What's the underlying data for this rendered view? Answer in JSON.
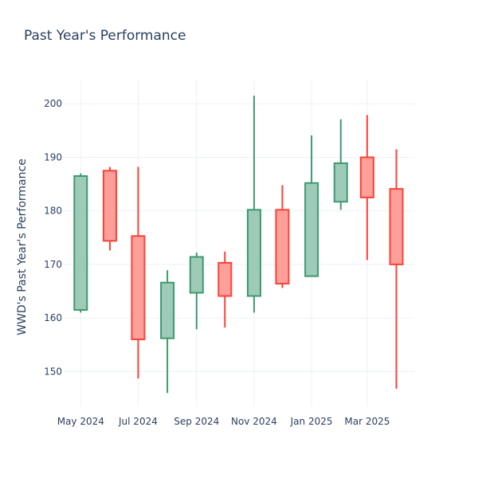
{
  "chart_data": {
    "type": "candlestick",
    "title": "Past Year's Performance",
    "xlabel": "",
    "ylabel": "WWD's Past Year's Performance",
    "ylim": [
      143.5,
      204.5
    ],
    "yticks": [
      150,
      160,
      170,
      180,
      190,
      200
    ],
    "xlim": [
      "2024-04-13",
      "2025-04-20"
    ],
    "xticks": [
      {
        "date": "2024-05-01",
        "label": "May 2024"
      },
      {
        "date": "2024-07-01",
        "label": "Jul 2024"
      },
      {
        "date": "2024-09-01",
        "label": "Sep 2024"
      },
      {
        "date": "2024-11-01",
        "label": "Nov 2024"
      },
      {
        "date": "2025-01-01",
        "label": "Jan 2025"
      },
      {
        "date": "2025-03-01",
        "label": "Mar 2025"
      }
    ],
    "increasing_color": "#3d9970",
    "increasing_fill": "#9ecbb7",
    "decreasing_color": "#ff4136",
    "decreasing_fill": "#ff9f9a",
    "candles": [
      {
        "date": "2024-05-01",
        "open": 161.5,
        "high": 187.0,
        "low": 161.0,
        "close": 186.5
      },
      {
        "date": "2024-06-01",
        "open": 187.5,
        "high": 188.2,
        "low": 172.6,
        "close": 174.4
      },
      {
        "date": "2024-07-01",
        "open": 175.3,
        "high": 188.2,
        "low": 148.7,
        "close": 156.0
      },
      {
        "date": "2024-08-01",
        "open": 156.2,
        "high": 168.9,
        "low": 146.0,
        "close": 166.6
      },
      {
        "date": "2024-09-01",
        "open": 164.7,
        "high": 172.2,
        "low": 157.9,
        "close": 171.4
      },
      {
        "date": "2024-10-01",
        "open": 170.3,
        "high": 172.4,
        "low": 158.2,
        "close": 164.1
      },
      {
        "date": "2024-11-01",
        "open": 164.1,
        "high": 201.5,
        "low": 161.0,
        "close": 180.2
      },
      {
        "date": "2024-12-01",
        "open": 180.2,
        "high": 184.8,
        "low": 165.6,
        "close": 166.4
      },
      {
        "date": "2025-01-01",
        "open": 167.8,
        "high": 194.1,
        "low": 167.8,
        "close": 185.2
      },
      {
        "date": "2025-02-01",
        "open": 181.7,
        "high": 197.1,
        "low": 180.2,
        "close": 188.9
      },
      {
        "date": "2025-03-01",
        "open": 190.0,
        "high": 197.9,
        "low": 170.8,
        "close": 182.5
      },
      {
        "date": "2025-04-01",
        "open": 184.1,
        "high": 191.5,
        "low": 146.8,
        "close": 170.0
      }
    ]
  }
}
